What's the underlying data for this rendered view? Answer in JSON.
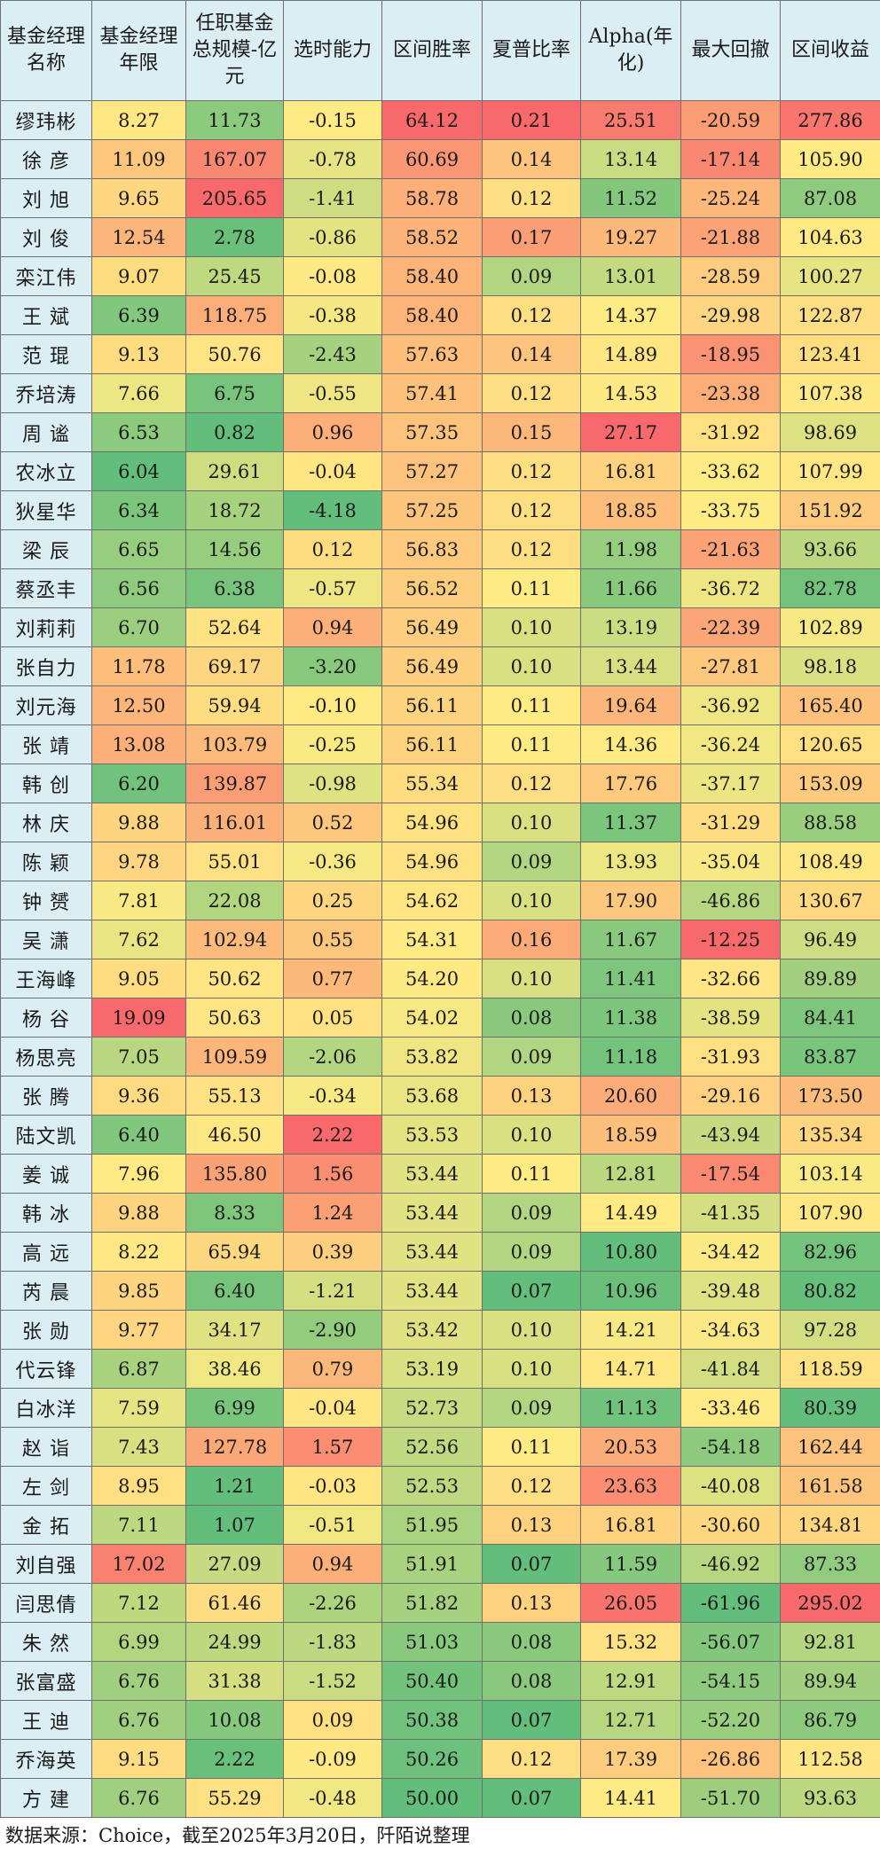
{
  "table": {
    "headers": [
      "基金经理名称",
      "基金经理年限",
      "任职基金总规模-亿元",
      "选时能力",
      "区间胜率",
      "夏普比率",
      "Alpha(年化)",
      "最大回撤",
      "区间收益"
    ],
    "rows": [
      [
        "缪玮彬",
        "8.27",
        "11.73",
        "-0.15",
        "64.12",
        "0.21",
        "25.51",
        "-20.59",
        "277.86"
      ],
      [
        "徐  彦",
        "11.09",
        "167.07",
        "-0.78",
        "60.69",
        "0.14",
        "13.14",
        "-17.14",
        "105.90"
      ],
      [
        "刘  旭",
        "9.65",
        "205.65",
        "-1.41",
        "58.78",
        "0.12",
        "11.52",
        "-25.24",
        "87.08"
      ],
      [
        "刘  俊",
        "12.54",
        "2.78",
        "-0.86",
        "58.52",
        "0.17",
        "19.27",
        "-21.88",
        "104.63"
      ],
      [
        "栾江伟",
        "9.07",
        "25.45",
        "-0.08",
        "58.40",
        "0.09",
        "13.01",
        "-28.59",
        "100.27"
      ],
      [
        "王  斌",
        "6.39",
        "118.75",
        "-0.38",
        "58.40",
        "0.12",
        "14.37",
        "-29.98",
        "122.87"
      ],
      [
        "范  琨",
        "9.13",
        "50.76",
        "-2.43",
        "57.63",
        "0.14",
        "14.89",
        "-18.95",
        "123.41"
      ],
      [
        "乔培涛",
        "7.66",
        "6.75",
        "-0.55",
        "57.41",
        "0.12",
        "14.53",
        "-23.38",
        "107.38"
      ],
      [
        "周  谧",
        "6.53",
        "0.82",
        "0.96",
        "57.35",
        "0.15",
        "27.17",
        "-31.92",
        "98.69"
      ],
      [
        "农冰立",
        "6.04",
        "29.61",
        "-0.04",
        "57.27",
        "0.12",
        "16.81",
        "-33.62",
        "107.99"
      ],
      [
        "狄星华",
        "6.34",
        "18.72",
        "-4.18",
        "57.25",
        "0.12",
        "18.85",
        "-33.75",
        "151.92"
      ],
      [
        "梁  辰",
        "6.65",
        "14.56",
        "0.12",
        "56.83",
        "0.12",
        "11.98",
        "-21.63",
        "93.66"
      ],
      [
        "蔡丞丰",
        "6.56",
        "6.38",
        "-0.57",
        "56.52",
        "0.11",
        "11.66",
        "-36.72",
        "82.78"
      ],
      [
        "刘莉莉",
        "6.70",
        "52.64",
        "0.94",
        "56.49",
        "0.10",
        "13.19",
        "-22.39",
        "102.89"
      ],
      [
        "张自力",
        "11.78",
        "69.17",
        "-3.20",
        "56.49",
        "0.10",
        "13.44",
        "-27.81",
        "98.18"
      ],
      [
        "刘元海",
        "12.50",
        "59.94",
        "-0.10",
        "56.11",
        "0.11",
        "19.64",
        "-36.92",
        "165.40"
      ],
      [
        "张  靖",
        "13.08",
        "103.79",
        "-0.25",
        "56.11",
        "0.11",
        "14.36",
        "-36.24",
        "120.65"
      ],
      [
        "韩  创",
        "6.20",
        "139.87",
        "-0.98",
        "55.34",
        "0.12",
        "17.76",
        "-37.17",
        "153.09"
      ],
      [
        "林  庆",
        "9.88",
        "116.01",
        "0.52",
        "54.96",
        "0.10",
        "11.37",
        "-31.29",
        "88.58"
      ],
      [
        "陈  颖",
        "9.78",
        "55.01",
        "-0.36",
        "54.96",
        "0.09",
        "13.93",
        "-35.04",
        "108.49"
      ],
      [
        "钟  赟",
        "7.81",
        "22.08",
        "0.25",
        "54.62",
        "0.10",
        "17.90",
        "-46.86",
        "130.67"
      ],
      [
        "吴  潇",
        "7.62",
        "102.94",
        "0.55",
        "54.31",
        "0.16",
        "11.67",
        "-12.25",
        "96.49"
      ],
      [
        "王海峰",
        "9.05",
        "50.62",
        "0.77",
        "54.20",
        "0.10",
        "11.41",
        "-32.66",
        "89.89"
      ],
      [
        "杨  谷",
        "19.09",
        "50.63",
        "0.05",
        "54.02",
        "0.08",
        "11.38",
        "-38.59",
        "84.41"
      ],
      [
        "杨思亮",
        "7.05",
        "109.59",
        "-2.06",
        "53.82",
        "0.09",
        "11.18",
        "-31.93",
        "83.87"
      ],
      [
        "张  腾",
        "9.36",
        "55.13",
        "-0.34",
        "53.68",
        "0.13",
        "20.60",
        "-29.16",
        "173.50"
      ],
      [
        "陆文凯",
        "6.40",
        "46.50",
        "2.22",
        "53.53",
        "0.10",
        "18.59",
        "-43.94",
        "135.34"
      ],
      [
        "姜  诚",
        "7.96",
        "135.80",
        "1.56",
        "53.44",
        "0.11",
        "12.81",
        "-17.54",
        "103.14"
      ],
      [
        "韩  冰",
        "9.88",
        "8.33",
        "1.24",
        "53.44",
        "0.09",
        "14.49",
        "-41.35",
        "107.90"
      ],
      [
        "高  远",
        "8.22",
        "65.94",
        "0.39",
        "53.44",
        "0.09",
        "10.80",
        "-34.42",
        "82.96"
      ],
      [
        "芮  晨",
        "9.85",
        "6.40",
        "-1.21",
        "53.44",
        "0.07",
        "10.96",
        "-39.48",
        "80.82"
      ],
      [
        "张  勋",
        "9.77",
        "34.17",
        "-2.90",
        "53.42",
        "0.10",
        "14.21",
        "-34.63",
        "97.28"
      ],
      [
        "代云锋",
        "6.87",
        "38.46",
        "0.79",
        "53.19",
        "0.10",
        "14.71",
        "-41.84",
        "118.59"
      ],
      [
        "白冰洋",
        "7.59",
        "6.99",
        "-0.04",
        "52.73",
        "0.09",
        "11.13",
        "-33.46",
        "80.39"
      ],
      [
        "赵  诣",
        "7.43",
        "127.78",
        "1.57",
        "52.56",
        "0.11",
        "20.53",
        "-54.18",
        "162.44"
      ],
      [
        "左  剑",
        "8.95",
        "1.21",
        "-0.03",
        "52.53",
        "0.12",
        "23.63",
        "-40.08",
        "161.58"
      ],
      [
        "金  拓",
        "7.11",
        "1.07",
        "-0.51",
        "51.95",
        "0.13",
        "16.81",
        "-30.60",
        "134.81"
      ],
      [
        "刘自强",
        "17.02",
        "27.09",
        "0.94",
        "51.91",
        "0.07",
        "11.59",
        "-46.92",
        "87.33"
      ],
      [
        "闫思倩",
        "7.12",
        "61.46",
        "-2.26",
        "51.82",
        "0.13",
        "26.05",
        "-61.96",
        "295.02"
      ],
      [
        "朱  然",
        "6.99",
        "24.99",
        "-1.83",
        "51.03",
        "0.08",
        "15.32",
        "-56.07",
        "92.81"
      ],
      [
        "张富盛",
        "6.76",
        "31.38",
        "-1.52",
        "50.40",
        "0.08",
        "12.91",
        "-54.15",
        "89.94"
      ],
      [
        "王  迪",
        "6.76",
        "10.08",
        "0.09",
        "50.38",
        "0.07",
        "12.71",
        "-52.20",
        "86.79"
      ],
      [
        "乔海英",
        "9.15",
        "2.22",
        "-0.09",
        "50.26",
        "0.12",
        "17.39",
        "-26.86",
        "112.58"
      ],
      [
        "方  建",
        "6.76",
        "55.29",
        "-0.48",
        "50.00",
        "0.07",
        "14.41",
        "-51.70",
        "93.63"
      ]
    ]
  },
  "footer": {
    "source": "数据来源：Choice，截至2025年3月20日，阡陌说整理"
  },
  "colors": {
    "header_bg": "#dbeef4",
    "scale_high": "#f8696b",
    "scale_mid": "#ffeb84",
    "scale_low": "#63be7b"
  }
}
